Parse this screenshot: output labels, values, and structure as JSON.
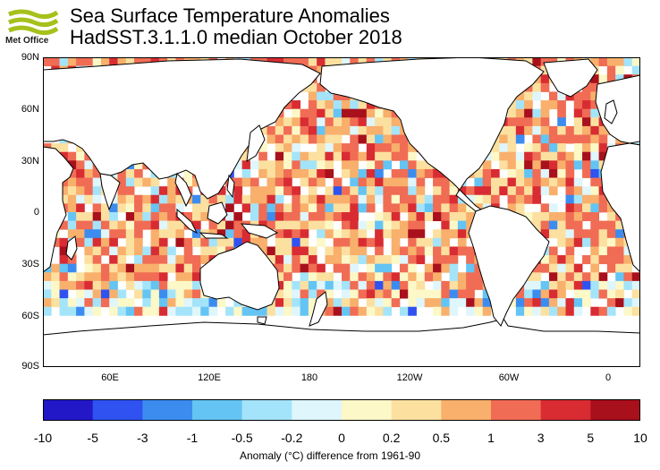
{
  "header": {
    "title": "Sea Surface Temperature Anomalies",
    "subtitle": "HadSST.3.1.1.0 median October 2018",
    "logo_text": "Met Office"
  },
  "axes": {
    "lat_labels": [
      "90N",
      "60N",
      "30N",
      "0",
      "30S",
      "60S",
      "90S"
    ],
    "lon_labels": [
      "60E",
      "120E",
      "180",
      "120W",
      "60W",
      "0"
    ]
  },
  "colorbar": {
    "tick_labels": [
      "-10",
      "-5",
      "-3",
      "-1",
      "-0.5",
      "-0.2",
      "0",
      "0.2",
      "0.5",
      "1",
      "3",
      "5",
      "10"
    ],
    "colors": [
      "#2318c8",
      "#2f52f0",
      "#3c8cf0",
      "#64c4f4",
      "#a4e4fa",
      "#def6fc",
      "#fcf8c8",
      "#fce0a0",
      "#f8b06c",
      "#f06c54",
      "#d82c32",
      "#a8101c"
    ],
    "title": "Anomaly (°C) difference from 1961-90"
  }
}
